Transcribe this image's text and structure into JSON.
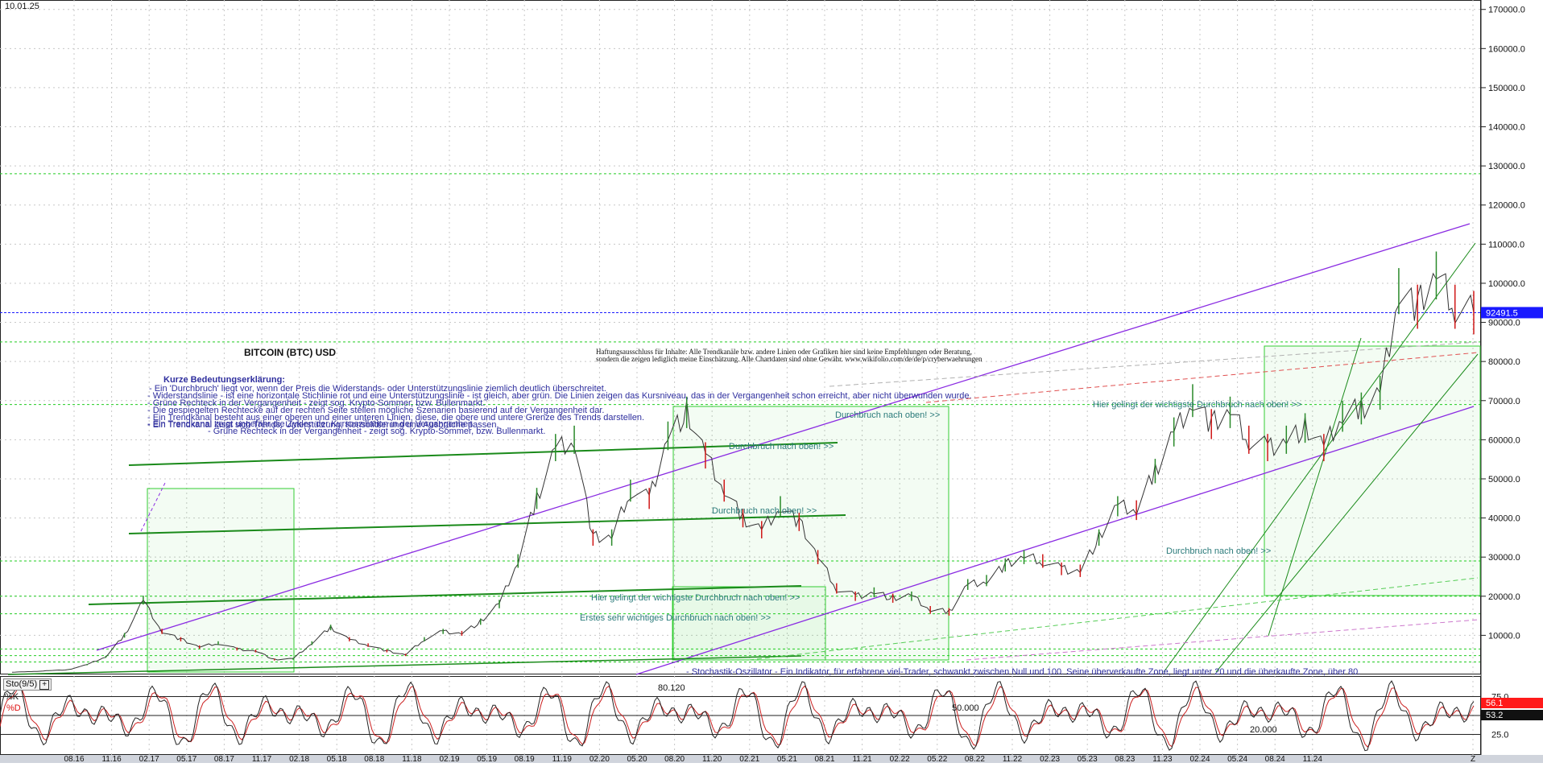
{
  "header": {
    "date": "10.01.25",
    "title": "BITCOIN (BTC) USD"
  },
  "disclaimer": {
    "line1": "Haftungsausschluss für Inhalte: Alle Trendkanäle bzw. andere Linien oder Grafiken hier sind keine Empfehlungen oder Beratung,",
    "line2": "sondern die zeigen lediglich meine  Einschätzung. Alle Chartdaten sind ohne Gewähr.  www.wikifolio.com/de/de/p/cryberwaehrungen"
  },
  "legend": {
    "heading": "Kurze Bedeutungserklärung:",
    "lines": [
      "- Ein 'Durchbruch' liegt vor, wenn der Preis die Widerstands- oder Unterstützungslinie ziemlich deutlich überschreitet.",
      "- Widerstandslinie - ist eine horizontale Stichlinie rot und eine Unterstützungslinie - ist gleich, aber grün. Die Linien zeigen das Kursniveau, das in der Vergangenheit schon erreicht, aber nicht überwunden wurde.",
      "- Grüne Rechteck in der Vergangenheit - zeigt sog. Krypto-Sommer, bzw. Bullenmarkt.",
      "- Die gespiegelten Rechtecke auf der rechten Seite stellen mögliche Szenarien basierend auf der Vergangenheit dar.",
      "- Ein Trendkanal besteht aus einer oberen und einer unteren Linien, diese, die obere und untere Grenze des Trends darstellen.",
      "- Ein Trendkanal lässt sich Trends, Unterstützung, Konsolidierung und Ausbrüche passen.",
      "- Ein Trendkanal zeigt ungefähr die Zyklen der Kursoszillation in der Vergangenheit.",
      "- Grüne Rechteck in der Vergangenheit - zeigt sog. Krypto-Sommer, bzw. Bullenmarkt."
    ]
  },
  "annotations": {
    "breakout_upper_right": "Hier gelingt der wichtigste Durchbruch nach oben! >>",
    "breakout_left": "Hier gelingt der wichtigste Durchbruch nach oben! >>",
    "first_breakout": "Erstes sehr wichtiges Durchbruch nach oben! >>",
    "breakout_1": "Durchbruch nach oben! >>",
    "breakout_2": "Durchbruch nach oben! >>",
    "breakout_3": "Durchbruch nach oben! >>",
    "breakout_4": "Durchbruch nach oben! >>",
    "stochastic_note": "- Stochastik-Oszillator - Ein Indikator, für erfahrene viel-Trader, schwankt zwischen Null und 100. Seine überverkaufte Zone, liegt unter 20 und die überkaufte Zone, über 80."
  },
  "oscillator": {
    "name": "Sto(9/5)",
    "k_label": "%K",
    "d_label": "%D",
    "k_value": "56.1",
    "d_value": "53.2",
    "levels": [
      "75.0",
      "25.0"
    ],
    "marks": [
      "80.120",
      "50.000",
      "20.000"
    ]
  },
  "price": {
    "current_label": "92491.5",
    "current_value": 92491.5
  },
  "colors": {
    "price_line": "#333333",
    "up_candle": "#2a8a2a",
    "down_candle": "#d01818",
    "trend_purple": "#8a2be2",
    "support_green": "#1a8a1a",
    "bull_box": "#33cc33",
    "current_price": "#1a1aff",
    "legend_text": "#2e2e9e",
    "annotation_text": "#2a7a7a"
  },
  "chart_data": {
    "type": "line",
    "title": "BITCOIN (BTC) USD",
    "ylim": [
      0,
      172000
    ],
    "y_ticks": [
      10000,
      20000,
      30000,
      40000,
      50000,
      60000,
      70000,
      80000,
      90000,
      100000,
      110000,
      120000,
      130000,
      140000,
      150000,
      160000,
      170000
    ],
    "y_tick_labels": [
      "10000.0",
      "20000.0",
      "30000.0",
      "40000.0",
      "50000.0",
      "60000.0",
      "70000.0",
      "80000.0",
      "90000.0",
      "100000.0",
      "110000.0",
      "120000.0",
      "130000.0",
      "140000.0",
      "150000.0",
      "160000.0",
      "170000.0"
    ],
    "x_labels": [
      "08.16",
      "11.16",
      "02.17",
      "05.17",
      "08.17",
      "11.17",
      "02.18",
      "05.18",
      "08.18",
      "11.18",
      "02.19",
      "05.19",
      "08.19",
      "11.19",
      "02.20",
      "05.20",
      "08.20",
      "11.20",
      "02.21",
      "05.21",
      "08.21",
      "11.21",
      "02.22",
      "05.22",
      "08.22",
      "11.22",
      "02.23",
      "05.23",
      "08.23",
      "11.23",
      "02.24",
      "05.24",
      "08.24",
      "11.24",
      "Z"
    ],
    "series": [
      {
        "values": [
          600,
          700,
          1000,
          1200,
          2500,
          4500,
          10000,
          19000,
          11000,
          9000,
          7000,
          8000,
          6500,
          6000,
          3800,
          4000,
          8000,
          12000,
          9000,
          7500,
          6000,
          5000,
          9000,
          11000,
          10500,
          13500,
          18000,
          29000,
          45000,
          58000,
          60000,
          35000,
          35000,
          47000,
          45000,
          61000,
          67000,
          56000,
          47000,
          40000,
          37000,
          43000,
          39000,
          30000,
          22000,
          20000,
          21000,
          19500,
          20000,
          16500,
          16000,
          23000,
          24000,
          28000,
          30000,
          29000,
          27000,
          26500,
          35000,
          43000,
          42000,
          52000,
          62000,
          70000,
          64000,
          67000,
          60000,
          58000,
          60000,
          63000,
          58000,
          66000,
          68000,
          72000,
          98000,
          94000,
          102000,
          94000,
          92491.5
        ]
      }
    ],
    "horizontal_lines": [
      128000,
      85000,
      69000,
      29000,
      20000,
      15500,
      6500,
      4800,
      3200
    ],
    "current_price": 92491.5
  }
}
